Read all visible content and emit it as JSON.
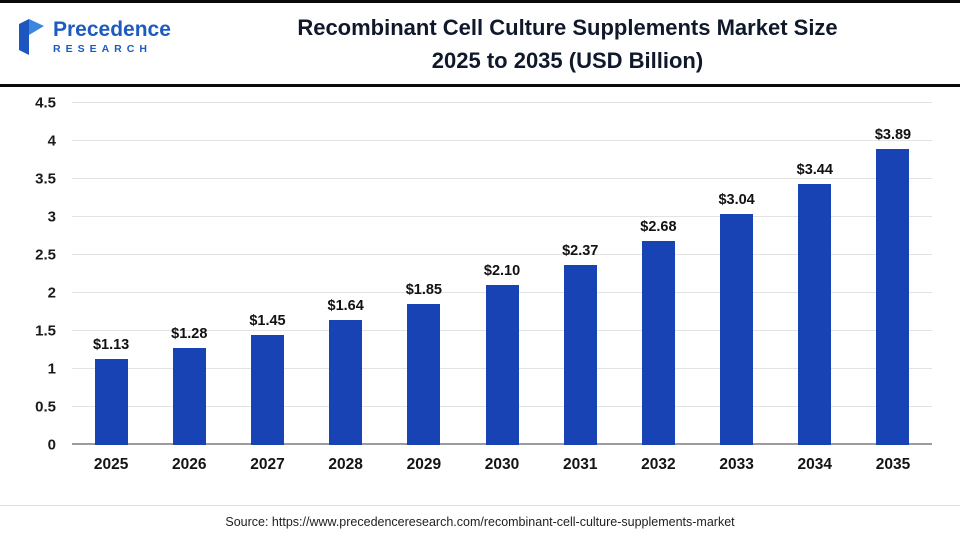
{
  "header": {
    "logo": {
      "name": "Precedence",
      "subname": "RESEARCH",
      "color": "#1d5bbf"
    },
    "title_line1": "Recombinant Cell Culture Supplements Market Size",
    "title_line2": "2025 to 2035 (USD Billion)"
  },
  "chart_data": {
    "type": "bar",
    "title": "Recombinant Cell Culture Supplements Market Size 2025 to 2035 (USD Billion)",
    "xlabel": "",
    "ylabel": "",
    "categories": [
      "2025",
      "2026",
      "2027",
      "2028",
      "2029",
      "2030",
      "2031",
      "2032",
      "2033",
      "2034",
      "2035"
    ],
    "values": [
      1.13,
      1.28,
      1.45,
      1.64,
      1.85,
      2.1,
      2.37,
      2.68,
      3.04,
      3.44,
      3.89
    ],
    "labels": [
      "$1.13",
      "$1.28",
      "$1.45",
      "$1.64",
      "$1.85",
      "$2.10",
      "$2.37",
      "$2.68",
      "$3.04",
      "$3.44",
      "$3.89"
    ],
    "ylim": [
      0,
      4.5
    ],
    "ytick_step": 0.5,
    "grid": true,
    "legend": false,
    "bar_color": "#1843b5"
  },
  "footer": {
    "source": "Source: https://www.precedenceresearch.com/recombinant-cell-culture-supplements-market"
  }
}
